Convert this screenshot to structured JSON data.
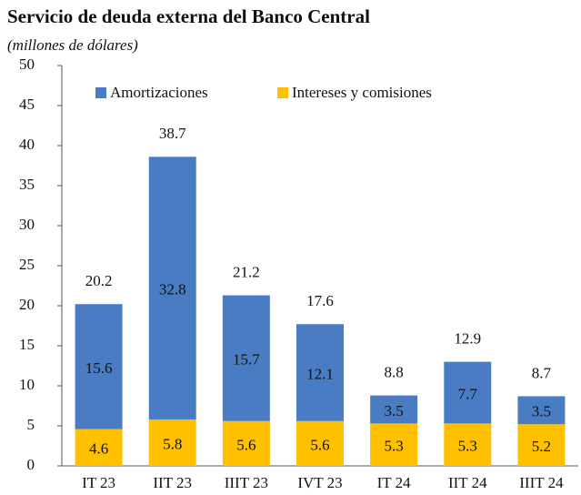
{
  "chart_data": {
    "type": "stacked_bar",
    "title": "Servicio de deuda externa del Banco Central",
    "subtitle": "(millones de dólares)",
    "categories": [
      "IT 23",
      "IIT 23",
      "IIIT 23",
      "IVT 23",
      "IT 24",
      "IIT 24",
      "IIIT 24"
    ],
    "series": [
      {
        "name": "Intereses y comisiones",
        "color": "#ffc000",
        "values": [
          4.6,
          5.8,
          5.6,
          5.6,
          5.3,
          5.3,
          5.2
        ]
      },
      {
        "name": "Amortizaciones",
        "color": "#4a7cc4",
        "values": [
          15.6,
          32.8,
          15.7,
          12.1,
          3.5,
          7.7,
          3.5
        ]
      }
    ],
    "totals": [
      20.2,
      38.7,
      21.2,
      17.6,
      8.8,
      12.9,
      8.7
    ],
    "ylim": [
      0,
      50
    ],
    "yticks": [
      0,
      5,
      10,
      15,
      20,
      25,
      30,
      35,
      40,
      45,
      50
    ],
    "grid": false,
    "legend": "top"
  }
}
